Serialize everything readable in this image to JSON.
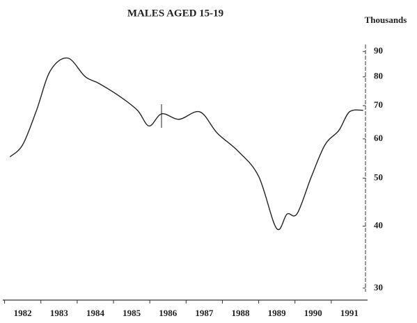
{
  "chart_data": {
    "type": "line",
    "title": "MALES AGED 15-19",
    "y_label": "Thousands",
    "log_y": true,
    "color": "#222222",
    "xlim": [
      1981.95,
      1992.0
    ],
    "xticks": [
      1982,
      1983,
      1984,
      1985,
      1986,
      1987,
      1988,
      1989,
      1990,
      1991
    ],
    "ylim": [
      29.5,
      93
    ],
    "yticks": [
      30,
      40,
      50,
      60,
      70,
      80,
      90
    ],
    "x": [
      1982.15,
      1982.5,
      1982.88,
      1983.26,
      1983.74,
      1984.22,
      1984.6,
      1985.18,
      1985.66,
      1985.98,
      1986.33,
      1986.81,
      1987.38,
      1987.86,
      1988.44,
      1989.0,
      1989.49,
      1989.78,
      1990.06,
      1990.45,
      1990.83,
      1991.21,
      1991.5,
      1991.88
    ],
    "values": [
      55.2,
      58.4,
      68.5,
      82.3,
      87.3,
      80.1,
      77.6,
      73,
      68.5,
      63.7,
      67.4,
      65.7,
      68,
      61.6,
      56.6,
      50.4,
      39.6,
      42.3,
      42.4,
      50.3,
      58.4,
      62.4,
      68,
      68.5
    ]
  }
}
